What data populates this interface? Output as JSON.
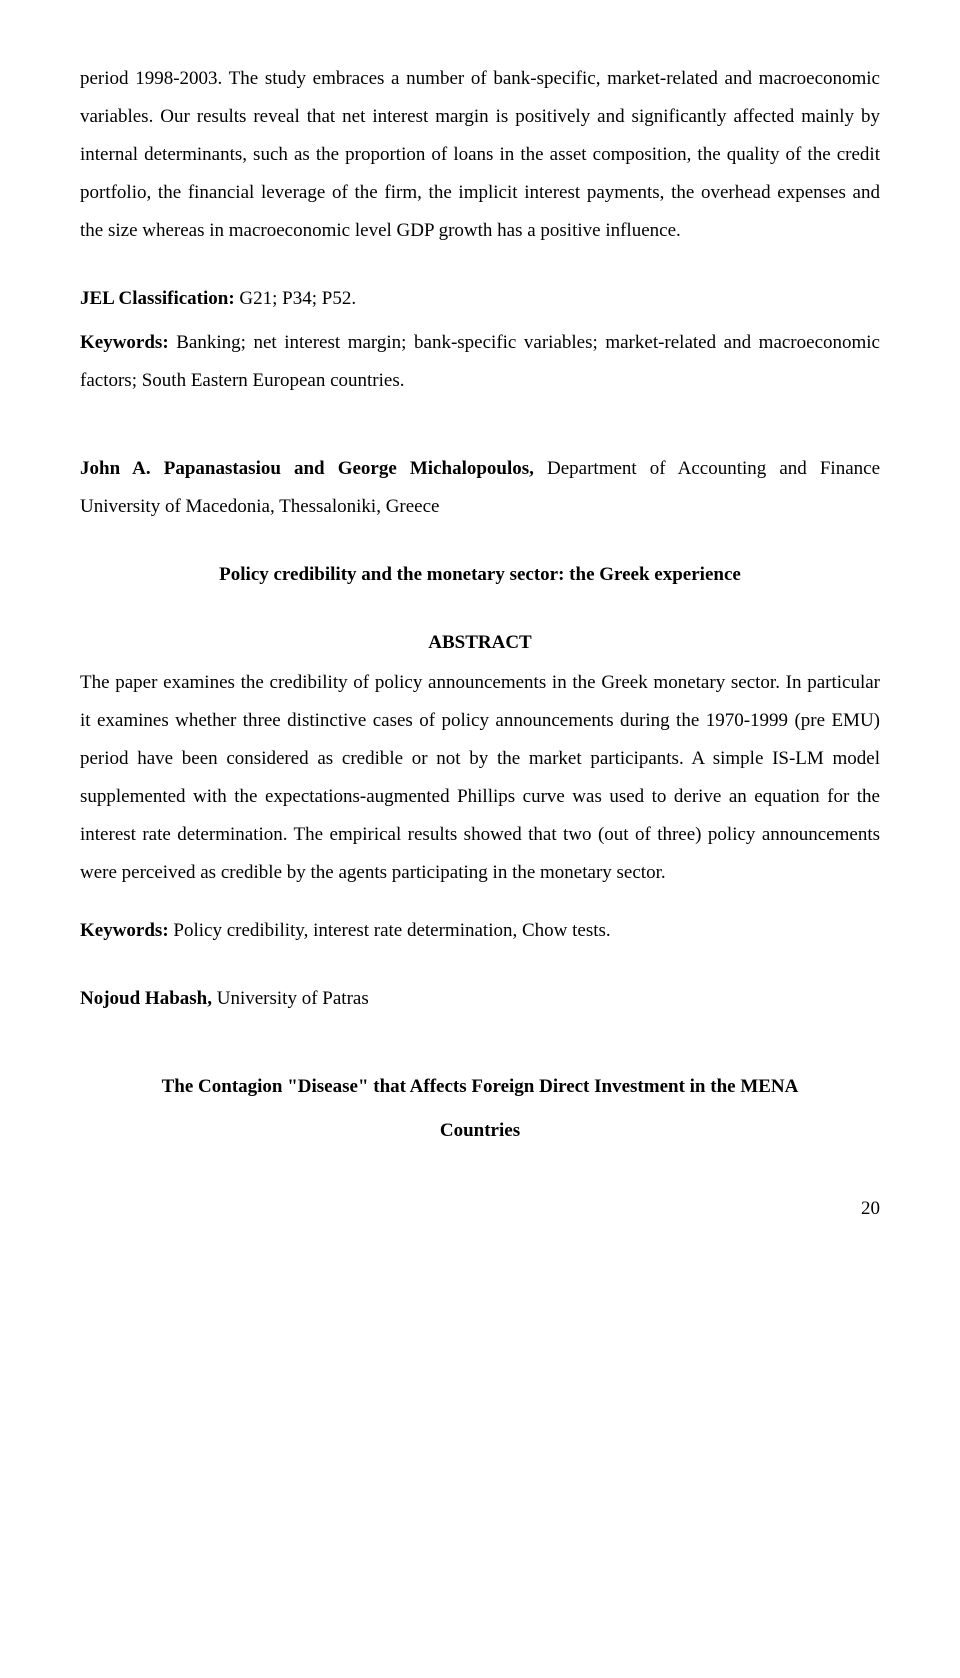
{
  "para1": "period 1998-2003. The study embraces a number of bank-specific, market-related and macroeconomic variables. Our results reveal that net interest margin is positively and significantly affected mainly by internal determinants, such as the proportion of loans in the asset composition, the quality of the credit portfolio, the financial leverage of the firm, the implicit interest payments, the overhead expenses and the size whereas in macroeconomic level GDP growth has a positive influence.",
  "jel_label": "JEL Classification:",
  "jel_value": " G21; P34; P52.",
  "keywords1_label": "Keywords:",
  "keywords1_value": " Banking; net interest margin; bank-specific variables; market-related and macroeconomic factors; South Eastern European countries.",
  "author1_name": "John A.   Papanastasiou and George Michalopoulos,",
  "author1_affil": " Department of Accounting and Finance University of Macedonia, Thessaloniki, Greece",
  "paper1_title": "Policy credibility and the monetary sector: the Greek experience",
  "abstract_label": "ABSTRACT",
  "abstract_text": "The paper examines the credibility of policy announcements in the Greek monetary sector. In particular it examines whether three distinctive cases of policy announcements during the 1970-1999 (pre EMU) period have been considered as credible or not by the market participants. A simple IS-LM model supplemented with the expectations-augmented Phillips curve was used to derive an equation for the interest rate determination. The empirical results showed that two (out of three) policy announcements were perceived as credible by the agents participating in the monetary sector.",
  "keywords2_label": "Keywords:",
  "keywords2_value": " Policy credibility, interest rate determination, Chow tests.",
  "author2_name": "Nojoud Habash,",
  "author2_affil": " University of Patras",
  "paper2_title_l1": "The Contagion \"Disease\" that Affects Foreign Direct Investment  in the MENA",
  "paper2_title_l2": "Countries",
  "page_number": "20"
}
